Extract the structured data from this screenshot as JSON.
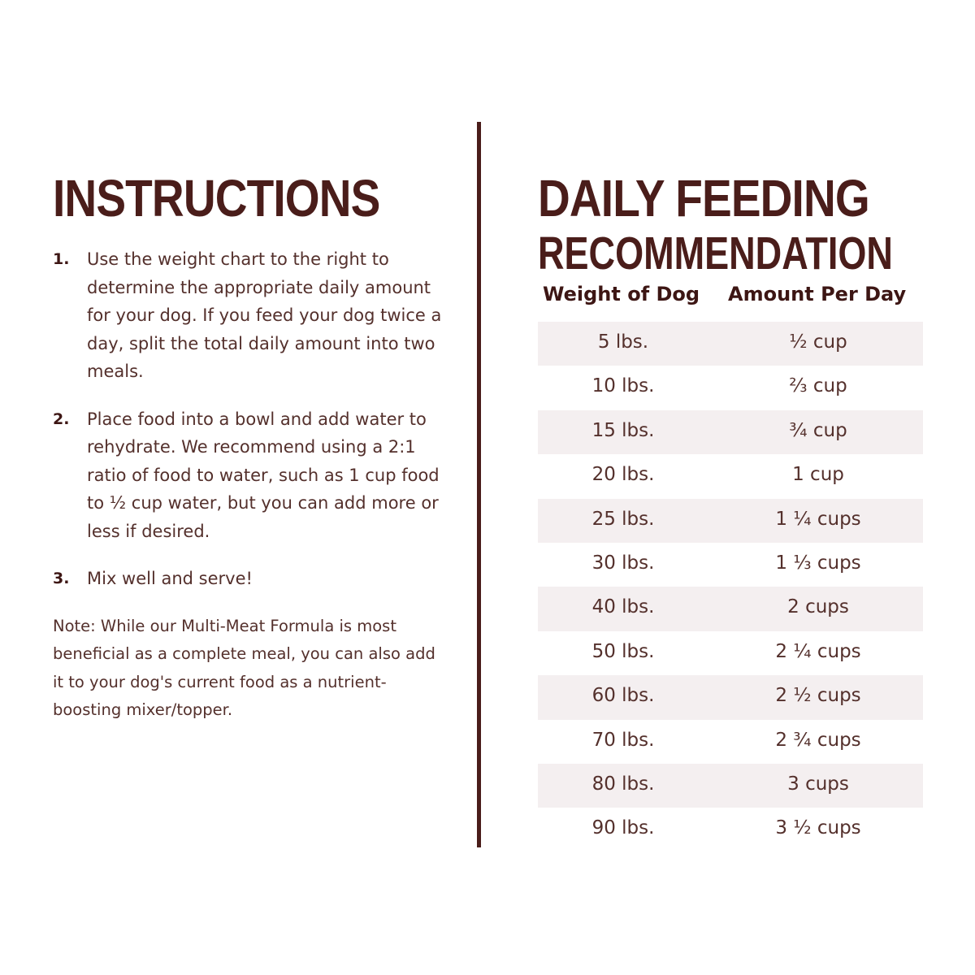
{
  "instructions": {
    "title": "INSTRUCTIONS",
    "steps": [
      {
        "number": "1.",
        "text": "Use the weight chart to the right to determine the appropriate daily amount for your dog. If you feed your dog twice a day, split the total daily amount into two meals."
      },
      {
        "number": "2.",
        "text": "Place food into a bowl and add water to rehydrate. We recommend using a 2:1 ratio of food to water, such as 1 cup food to ½ cup water, but you can add more or less if desired."
      },
      {
        "number": "3.",
        "text": "Mix well and serve!"
      }
    ],
    "note": "Note: While our Multi-Meat Formula is most beneficial as a complete meal, you can also add it to your dog's current food as a nutrient-boosting mixer/topper."
  },
  "feeding": {
    "title_line1": "DAILY FEEDING",
    "title_line2": "RECOMMENDATION",
    "headers": {
      "weight": "Weight of Dog",
      "amount": "Amount Per Day"
    },
    "rows": [
      {
        "weight": "5 lbs.",
        "amount": "½ cup"
      },
      {
        "weight": "10 lbs.",
        "amount": "⅔ cup"
      },
      {
        "weight": "15 lbs.",
        "amount": "¾ cup"
      },
      {
        "weight": "20 lbs.",
        "amount": "1 cup"
      },
      {
        "weight": "25 lbs.",
        "amount": "1 ¼ cups"
      },
      {
        "weight": "30 lbs.",
        "amount": "1 ⅓ cups"
      },
      {
        "weight": "40 lbs.",
        "amount": "2 cups"
      },
      {
        "weight": "50 lbs.",
        "amount": "2 ¼ cups"
      },
      {
        "weight": "60 lbs.",
        "amount": "2 ½ cups"
      },
      {
        "weight": "70 lbs.",
        "amount": "2 ¾ cups"
      },
      {
        "weight": "80 lbs.",
        "amount": "3 cups"
      },
      {
        "weight": "90 lbs.",
        "amount": "3 ½ cups"
      }
    ]
  },
  "colors": {
    "brand": "#4a1d1a",
    "text": "#54302c",
    "row_shade": "#f4eff0"
  }
}
